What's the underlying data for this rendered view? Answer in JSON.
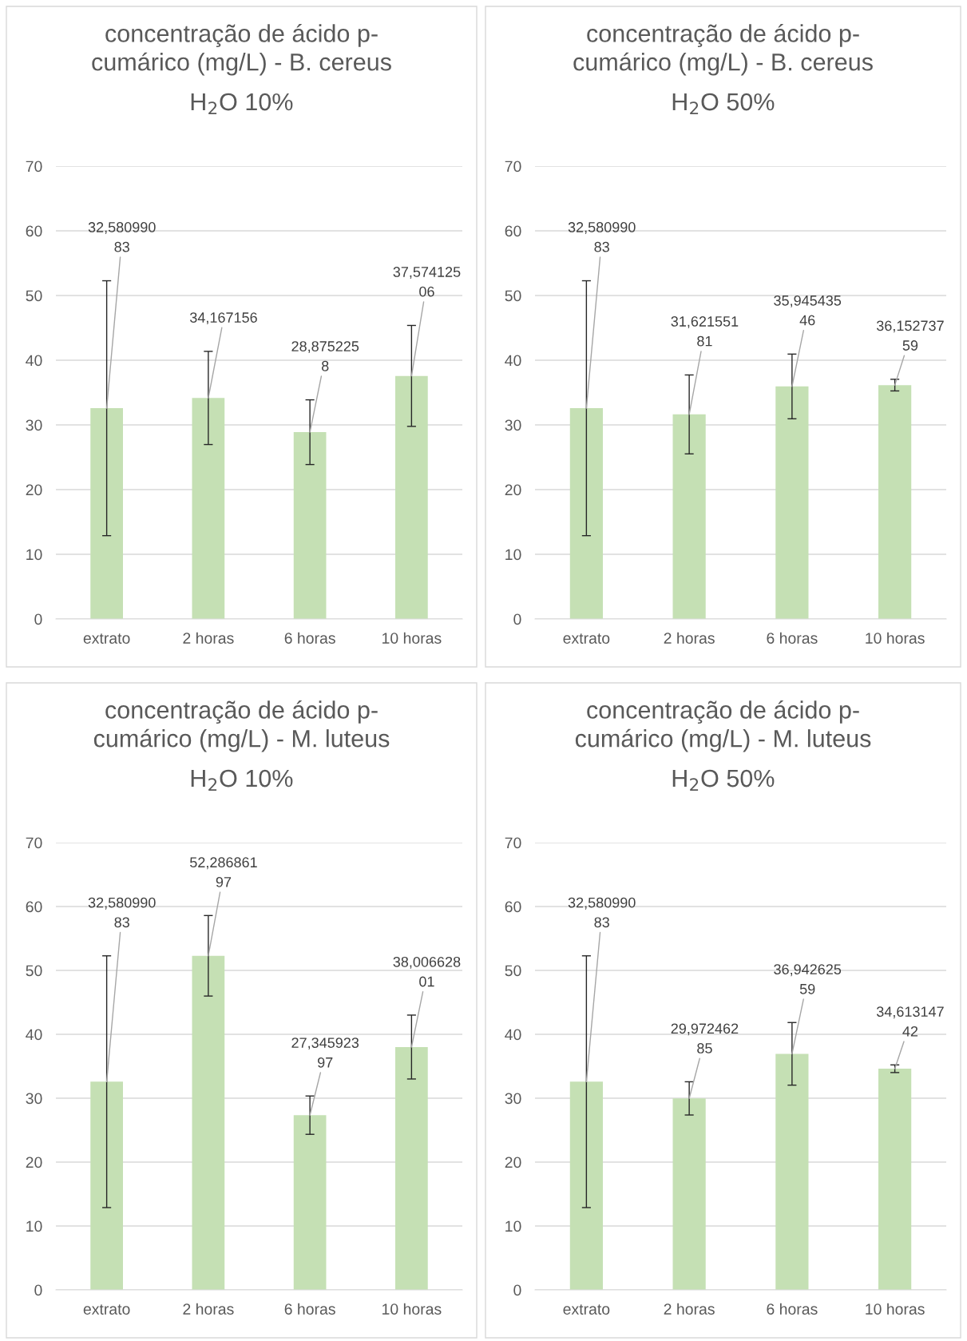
{
  "chart_data": [
    {
      "type": "bar",
      "title": "concentração de ácido p-\ncumárico (mg/L) - B. cereus",
      "subtitle": "H$_{2}$O 10%",
      "categories": [
        "extrato",
        "2 horas",
        "6 horas",
        "10 horas"
      ],
      "values": [
        32.58099083,
        34.167156,
        28.8752258,
        37.57412506
      ],
      "errors": [
        19.7,
        7.2,
        5,
        7.8
      ],
      "value_labels": [
        "32,580990\n83",
        "34,167156",
        "28,875225\n8",
        "37,574125\n06"
      ],
      "color": "#c5e0b4",
      "ylim": [
        0,
        70
      ],
      "yticks": [
        0,
        10,
        20,
        30,
        40,
        50,
        60,
        70
      ],
      "grid": "y"
    },
    {
      "type": "bar",
      "title": "concentração de ácido p-\ncumárico (mg/L) - B. cereus",
      "subtitle": "H$_{2}$O 50%",
      "categories": [
        "extrato",
        "2 horas",
        "6 horas",
        "10 horas"
      ],
      "values": [
        32.58099083,
        31.62155181,
        35.94543546,
        36.15273759
      ],
      "errors": [
        19.7,
        6.1,
        5,
        0.9
      ],
      "value_labels": [
        "32,580990\n83",
        "31,621551\n81",
        "35,945435\n46",
        "36,152737\n59"
      ],
      "color": "#c5e0b4",
      "ylim": [
        0,
        70
      ],
      "yticks": [
        0,
        10,
        20,
        30,
        40,
        50,
        60,
        70
      ],
      "grid": "y"
    },
    {
      "type": "bar",
      "title": "concentração de ácido p-\ncumárico (mg/L) - M. luteus",
      "subtitle": "H$_{2}$O 10%",
      "categories": [
        "extrato",
        "2 horas",
        "6 horas",
        "10 horas"
      ],
      "values": [
        32.58099083,
        52.28686197,
        27.34592397,
        38.00662801
      ],
      "errors": [
        19.7,
        6.3,
        3,
        5
      ],
      "value_labels": [
        "32,580990\n83",
        "52,286861\n97",
        "27,345923\n97",
        "38,006628\n01"
      ],
      "color": "#c5e0b4",
      "ylim": [
        0,
        70
      ],
      "yticks": [
        0,
        10,
        20,
        30,
        40,
        50,
        60,
        70
      ],
      "grid": "y"
    },
    {
      "type": "bar",
      "title": "concentração de ácido p-\ncumárico (mg/L) - M. luteus",
      "subtitle": "H$_{2}$O 50%",
      "categories": [
        "extrato",
        "2 horas",
        "6 horas",
        "10 horas"
      ],
      "values": [
        32.58099083,
        29.97246285,
        36.94262559,
        34.61314742
      ],
      "errors": [
        19.7,
        2.6,
        4.9,
        0.6
      ],
      "value_labels": [
        "32,580990\n83",
        "29,972462\n85",
        "36,942625\n59",
        "34,613147\n42"
      ],
      "color": "#c5e0b4",
      "ylim": [
        0,
        70
      ],
      "yticks": [
        0,
        10,
        20,
        30,
        40,
        50,
        60,
        70
      ],
      "grid": "y"
    }
  ]
}
